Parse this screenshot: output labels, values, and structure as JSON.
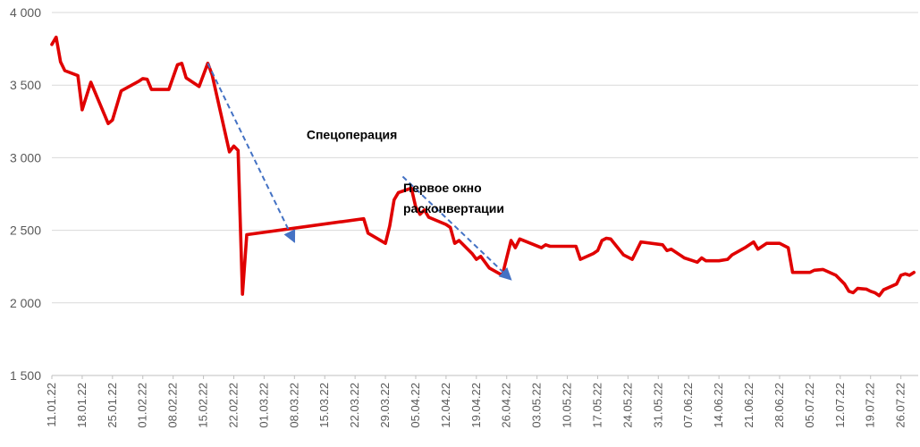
{
  "chart_data": {
    "type": "line",
    "title": "",
    "xlabel": "",
    "ylabel": "",
    "ylim": [
      1500,
      4000
    ],
    "y_ticks": [
      1500,
      2000,
      2500,
      3000,
      3500,
      4000
    ],
    "y_tick_labels": [
      "1 500",
      "2 000",
      "2 500",
      "3 000",
      "3 500",
      "4 000"
    ],
    "x_tick_labels": [
      "11.01.22",
      "18.01.22",
      "25.01.22",
      "01.02.22",
      "08.02.22",
      "15.02.22",
      "22.02.22",
      "01.03.22",
      "08.03.22",
      "15.03.22",
      "22.03.22",
      "29.03.22",
      "05.04.22",
      "12.04.22",
      "19.04.22",
      "26.04.22",
      "03.05.22",
      "10.05.22",
      "17.05.22",
      "24.05.22",
      "31.05.22",
      "07.06.22",
      "14.06.22",
      "21.06.22",
      "28.06.22",
      "05.07.22",
      "12.07.22",
      "19.07.22",
      "26.07.22"
    ],
    "x_range": [
      "2022-01-11",
      "2022-07-30"
    ],
    "grid": "horizontal",
    "series_color": "#e00000",
    "trend_color": "#4472c4",
    "series": [
      {
        "values": [
          [
            "2022-01-11",
            3780
          ],
          [
            "2022-01-12",
            3830
          ],
          [
            "2022-01-13",
            3660
          ],
          [
            "2022-01-14",
            3600
          ],
          [
            "2022-01-17",
            3565
          ],
          [
            "2022-01-18",
            3330
          ],
          [
            "2022-01-20",
            3520
          ],
          [
            "2022-01-24",
            3235
          ],
          [
            "2022-01-25",
            3260
          ],
          [
            "2022-01-27",
            3460
          ],
          [
            "2022-01-31",
            3525
          ],
          [
            "2022-02-01",
            3545
          ],
          [
            "2022-02-02",
            3540
          ],
          [
            "2022-02-03",
            3470
          ],
          [
            "2022-02-07",
            3470
          ],
          [
            "2022-02-09",
            3640
          ],
          [
            "2022-02-10",
            3650
          ],
          [
            "2022-02-11",
            3550
          ],
          [
            "2022-02-14",
            3490
          ],
          [
            "2022-02-16",
            3650
          ],
          [
            "2022-02-17",
            3570
          ],
          [
            "2022-02-21",
            3040
          ],
          [
            "2022-02-22",
            3080
          ],
          [
            "2022-02-23",
            3050
          ],
          [
            "2022-02-24",
            2060
          ],
          [
            "2022-02-25",
            2470
          ],
          [
            "2022-03-24",
            2580
          ],
          [
            "2022-03-25",
            2480
          ],
          [
            "2022-03-29",
            2410
          ],
          [
            "2022-03-30",
            2530
          ],
          [
            "2022-03-31",
            2710
          ],
          [
            "2022-04-01",
            2760
          ],
          [
            "2022-04-04",
            2790
          ],
          [
            "2022-04-05",
            2660
          ],
          [
            "2022-04-06",
            2610
          ],
          [
            "2022-04-07",
            2640
          ],
          [
            "2022-04-08",
            2590
          ],
          [
            "2022-04-12",
            2540
          ],
          [
            "2022-04-13",
            2520
          ],
          [
            "2022-04-14",
            2410
          ],
          [
            "2022-04-15",
            2430
          ],
          [
            "2022-04-18",
            2340
          ],
          [
            "2022-04-19",
            2300
          ],
          [
            "2022-04-20",
            2320
          ],
          [
            "2022-04-22",
            2240
          ],
          [
            "2022-04-25",
            2190
          ],
          [
            "2022-04-26",
            2310
          ],
          [
            "2022-04-27",
            2430
          ],
          [
            "2022-04-28",
            2380
          ],
          [
            "2022-04-29",
            2440
          ],
          [
            "2022-05-04",
            2380
          ],
          [
            "2022-05-05",
            2400
          ],
          [
            "2022-05-06",
            2390
          ],
          [
            "2022-05-12",
            2390
          ],
          [
            "2022-05-13",
            2300
          ],
          [
            "2022-05-16",
            2340
          ],
          [
            "2022-05-17",
            2360
          ],
          [
            "2022-05-18",
            2430
          ],
          [
            "2022-05-19",
            2445
          ],
          [
            "2022-05-20",
            2440
          ],
          [
            "2022-05-23",
            2330
          ],
          [
            "2022-05-25",
            2300
          ],
          [
            "2022-05-27",
            2420
          ],
          [
            "2022-06-01",
            2400
          ],
          [
            "2022-06-02",
            2360
          ],
          [
            "2022-06-03",
            2370
          ],
          [
            "2022-06-06",
            2310
          ],
          [
            "2022-06-08",
            2290
          ],
          [
            "2022-06-09",
            2280
          ],
          [
            "2022-06-10",
            2310
          ],
          [
            "2022-06-11",
            2290
          ],
          [
            "2022-06-14",
            2290
          ],
          [
            "2022-06-16",
            2300
          ],
          [
            "2022-06-17",
            2330
          ],
          [
            "2022-06-20",
            2380
          ],
          [
            "2022-06-22",
            2420
          ],
          [
            "2022-06-23",
            2370
          ],
          [
            "2022-06-25",
            2410
          ],
          [
            "2022-06-28",
            2410
          ],
          [
            "2022-06-30",
            2380
          ],
          [
            "2022-07-01",
            2210
          ],
          [
            "2022-07-05",
            2210
          ],
          [
            "2022-07-06",
            2225
          ],
          [
            "2022-07-08",
            2230
          ],
          [
            "2022-07-11",
            2190
          ],
          [
            "2022-07-13",
            2130
          ],
          [
            "2022-07-14",
            2080
          ],
          [
            "2022-07-15",
            2070
          ],
          [
            "2022-07-16",
            2100
          ],
          [
            "2022-07-18",
            2095
          ],
          [
            "2022-07-19",
            2080
          ],
          [
            "2022-07-20",
            2070
          ],
          [
            "2022-07-21",
            2050
          ],
          [
            "2022-07-22",
            2090
          ],
          [
            "2022-07-25",
            2130
          ],
          [
            "2022-07-26",
            2190
          ],
          [
            "2022-07-27",
            2200
          ],
          [
            "2022-07-28",
            2190
          ],
          [
            "2022-07-29",
            2210
          ]
        ]
      }
    ],
    "annotations": [
      {
        "text": "Спецоперация",
        "lines": [
          "Спецоперация"
        ],
        "trend_from": [
          "2022-02-16",
          3650
        ],
        "trend_to": [
          "2022-03-08",
          2420
        ]
      },
      {
        "text": "Первое окно расконвертации",
        "lines": [
          "Первое окно",
          "расконвертации"
        ],
        "trend_from": [
          "2022-04-02",
          2870
        ],
        "trend_to": [
          "2022-04-27",
          2160
        ]
      }
    ]
  }
}
